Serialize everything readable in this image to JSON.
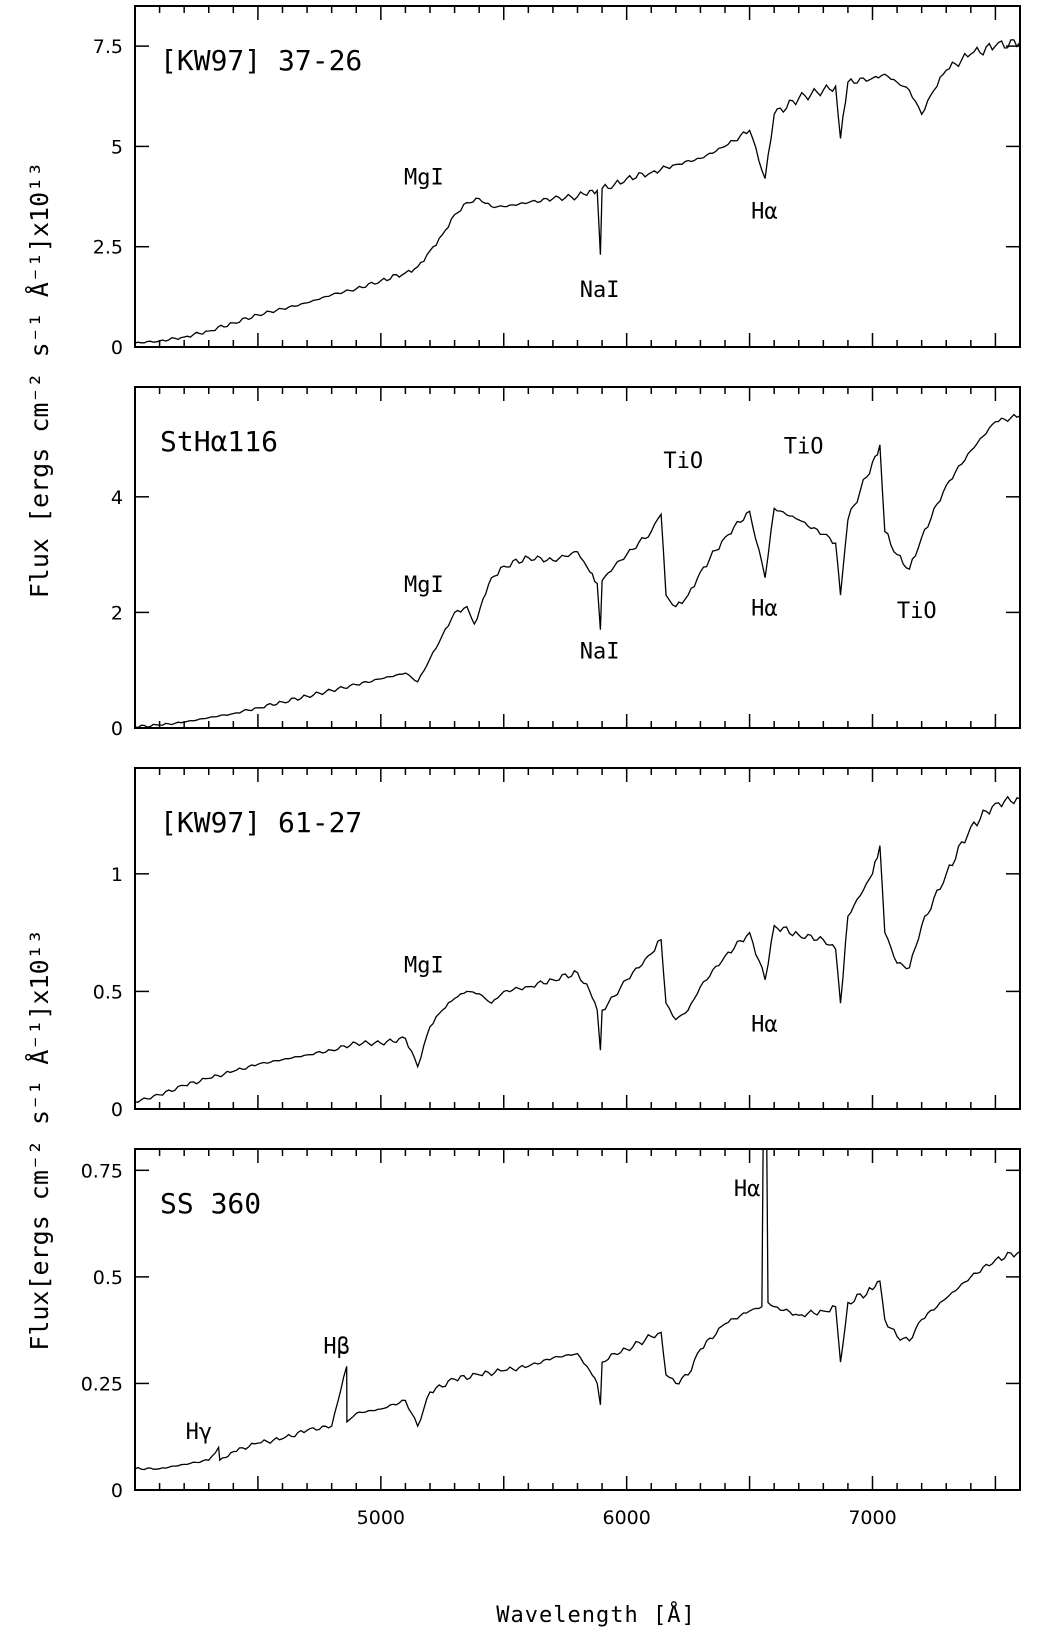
{
  "chart_data": [
    {
      "type": "line",
      "label": "[KW97] 37-26",
      "xlim": [
        4000,
        7600
      ],
      "ylim": [
        0,
        8.5
      ],
      "yticks": [
        {
          "value": 0,
          "label": "0"
        },
        {
          "value": 2.5,
          "label": "2.5"
        },
        {
          "value": 5,
          "label": "5"
        },
        {
          "value": 7.5,
          "label": "7.5"
        }
      ],
      "series": [
        {
          "x": [
            4000,
            4100,
            4200,
            4300,
            4400,
            4500,
            4600,
            4700,
            4800,
            4900,
            5000,
            5100,
            5150,
            5200,
            5250,
            5300,
            5350,
            5400,
            5450,
            5500,
            5600,
            5700,
            5800,
            5850,
            5880,
            5893,
            5900,
            5950,
            6000,
            6100,
            6200,
            6300,
            6400,
            6500,
            6563,
            6600,
            6700,
            6800,
            6850,
            6870,
            6900,
            7000,
            7050,
            7100,
            7150,
            7200,
            7250,
            7300,
            7400,
            7500,
            7600
          ],
          "y": [
            0.1,
            0.15,
            0.25,
            0.4,
            0.6,
            0.8,
            0.95,
            1.1,
            1.3,
            1.45,
            1.65,
            1.85,
            2.0,
            2.4,
            2.8,
            3.3,
            3.6,
            3.7,
            3.5,
            3.5,
            3.6,
            3.7,
            3.75,
            3.9,
            3.9,
            2.3,
            3.95,
            4.05,
            4.2,
            4.35,
            4.55,
            4.7,
            5.0,
            5.4,
            4.2,
            5.8,
            6.2,
            6.4,
            6.5,
            5.2,
            6.6,
            6.7,
            6.8,
            6.6,
            6.4,
            5.8,
            6.4,
            6.9,
            7.3,
            7.5,
            7.6
          ]
        }
      ],
      "annotations": [
        {
          "text": "MgI",
          "x": 5175,
          "y": 4.05
        },
        {
          "text": "NaI",
          "x": 5890,
          "y": 1.25
        },
        {
          "text": "Hα",
          "x": 6560,
          "y": 3.2
        }
      ]
    },
    {
      "type": "line",
      "label": "StHα116",
      "xlim": [
        4000,
        7600
      ],
      "ylim": [
        0,
        5.9
      ],
      "yticks": [
        {
          "value": 0,
          "label": "0"
        },
        {
          "value": 2,
          "label": "2"
        },
        {
          "value": 4,
          "label": "4"
        }
      ],
      "series": [
        {
          "x": [
            4000,
            4100,
            4200,
            4300,
            4400,
            4500,
            4600,
            4700,
            4800,
            4900,
            5000,
            5100,
            5150,
            5200,
            5250,
            5300,
            5350,
            5380,
            5450,
            5500,
            5600,
            5700,
            5800,
            5850,
            5880,
            5893,
            5900,
            5950,
            6000,
            6100,
            6140,
            6160,
            6200,
            6250,
            6300,
            6400,
            6500,
            6563,
            6600,
            6700,
            6800,
            6850,
            6870,
            6900,
            7000,
            7030,
            7050,
            7100,
            7150,
            7200,
            7300,
            7400,
            7500,
            7600
          ],
          "y": [
            0.02,
            0.05,
            0.1,
            0.18,
            0.25,
            0.35,
            0.45,
            0.55,
            0.65,
            0.75,
            0.85,
            0.95,
            0.8,
            1.2,
            1.6,
            2.0,
            2.1,
            1.8,
            2.6,
            2.8,
            2.95,
            2.9,
            3.05,
            2.7,
            2.5,
            1.7,
            2.55,
            2.8,
            3.0,
            3.4,
            3.7,
            2.3,
            2.1,
            2.3,
            2.7,
            3.3,
            3.75,
            2.6,
            3.8,
            3.6,
            3.35,
            3.2,
            2.3,
            3.6,
            4.6,
            4.9,
            3.4,
            3.0,
            2.75,
            3.3,
            4.2,
            4.8,
            5.3,
            5.4
          ]
        }
      ],
      "annotations": [
        {
          "text": "MgI",
          "x": 5175,
          "y": 2.35
        },
        {
          "text": "NaI",
          "x": 5890,
          "y": 1.2
        },
        {
          "text": "TiO",
          "x": 6230,
          "y": 4.5
        },
        {
          "text": "TiO",
          "x": 6720,
          "y": 4.75
        },
        {
          "text": "Hα",
          "x": 6560,
          "y": 1.95
        },
        {
          "text": "TiO",
          "x": 7180,
          "y": 1.9
        }
      ]
    },
    {
      "type": "line",
      "label": "[KW97] 61-27",
      "xlim": [
        4000,
        7600
      ],
      "ylim": [
        0,
        1.45
      ],
      "yticks": [
        {
          "value": 0,
          "label": "0"
        },
        {
          "value": 0.5,
          "label": "0.5"
        },
        {
          "value": 1,
          "label": "1"
        }
      ],
      "series": [
        {
          "x": [
            4000,
            4100,
            4200,
            4300,
            4400,
            4500,
            4600,
            4700,
            4800,
            4900,
            5000,
            5100,
            5150,
            5200,
            5250,
            5300,
            5350,
            5400,
            5450,
            5500,
            5600,
            5700,
            5800,
            5850,
            5880,
            5893,
            5900,
            5950,
            6000,
            6100,
            6140,
            6160,
            6200,
            6250,
            6300,
            6400,
            6500,
            6563,
            6600,
            6700,
            6800,
            6850,
            6870,
            6900,
            7000,
            7030,
            7050,
            7100,
            7150,
            7200,
            7300,
            7400,
            7500,
            7600
          ],
          "y": [
            0.03,
            0.06,
            0.1,
            0.13,
            0.16,
            0.19,
            0.21,
            0.23,
            0.25,
            0.28,
            0.28,
            0.3,
            0.18,
            0.35,
            0.42,
            0.47,
            0.5,
            0.49,
            0.45,
            0.5,
            0.52,
            0.55,
            0.58,
            0.5,
            0.42,
            0.25,
            0.42,
            0.48,
            0.55,
            0.66,
            0.72,
            0.45,
            0.38,
            0.42,
            0.52,
            0.65,
            0.75,
            0.55,
            0.78,
            0.74,
            0.72,
            0.68,
            0.45,
            0.82,
            1.0,
            1.12,
            0.75,
            0.62,
            0.6,
            0.78,
            1.0,
            1.2,
            1.3,
            1.32
          ]
        }
      ],
      "annotations": [
        {
          "text": "MgI",
          "x": 5175,
          "y": 0.58
        },
        {
          "text": "Hα",
          "x": 6560,
          "y": 0.33
        }
      ]
    },
    {
      "type": "line",
      "label": "SS 360",
      "xlim": [
        4000,
        7600
      ],
      "ylim": [
        0,
        0.8
      ],
      "yticks": [
        {
          "value": 0,
          "label": "0"
        },
        {
          "value": 0.25,
          "label": "0.25"
        },
        {
          "value": 0.5,
          "label": "0.5"
        },
        {
          "value": 0.75,
          "label": "0.75"
        }
      ],
      "series": [
        {
          "x": [
            4000,
            4100,
            4200,
            4300,
            4340,
            4345,
            4400,
            4500,
            4600,
            4700,
            4800,
            4861,
            4862,
            4900,
            5000,
            5100,
            5150,
            5200,
            5300,
            5400,
            5500,
            5600,
            5700,
            5800,
            5850,
            5880,
            5893,
            5900,
            5950,
            6000,
            6100,
            6140,
            6160,
            6200,
            6250,
            6300,
            6400,
            6500,
            6550,
            6555,
            6563,
            6570,
            6575,
            6600,
            6700,
            6800,
            6850,
            6870,
            6900,
            7000,
            7030,
            7050,
            7100,
            7150,
            7200,
            7300,
            7400,
            7500,
            7600
          ],
          "y": [
            0.05,
            0.05,
            0.06,
            0.07,
            0.1,
            0.07,
            0.09,
            0.11,
            0.12,
            0.14,
            0.15,
            0.29,
            0.16,
            0.18,
            0.19,
            0.21,
            0.15,
            0.23,
            0.26,
            0.27,
            0.28,
            0.29,
            0.31,
            0.32,
            0.28,
            0.25,
            0.2,
            0.3,
            0.32,
            0.33,
            0.36,
            0.37,
            0.27,
            0.25,
            0.27,
            0.33,
            0.39,
            0.42,
            0.43,
            0.8,
            0.8,
            0.8,
            0.44,
            0.43,
            0.41,
            0.42,
            0.43,
            0.3,
            0.44,
            0.47,
            0.49,
            0.4,
            0.36,
            0.35,
            0.4,
            0.45,
            0.5,
            0.54,
            0.56
          ]
        }
      ],
      "annotations": [
        {
          "text": "Hγ",
          "x": 4260,
          "y": 0.12
        },
        {
          "text": "Hβ",
          "x": 4820,
          "y": 0.32
        },
        {
          "text": "Hα",
          "x": 6490,
          "y": 0.69
        }
      ]
    }
  ],
  "axes": {
    "xticks": [
      {
        "value": 5000,
        "label": "5000"
      },
      {
        "value": 6000,
        "label": "6000"
      },
      {
        "value": 7000,
        "label": "7000"
      }
    ],
    "xlabel": "Wavelength [Å]",
    "ylabel_top": "Flux [ergs cm⁻² s⁻¹ Å⁻¹]x10¹³",
    "ylabel_bottom": "Flux[ergs cm⁻² s⁻¹ Å⁻¹]x10¹³"
  },
  "colors": {
    "line": "#000000",
    "background": "#ffffff"
  }
}
